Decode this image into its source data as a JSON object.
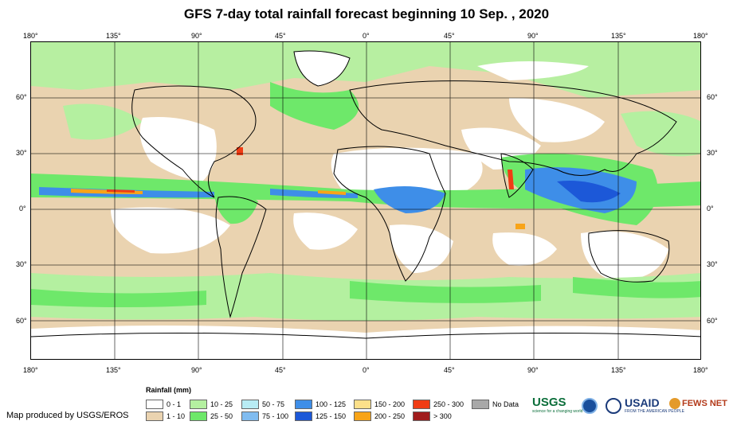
{
  "title": "GFS 7-day total rainfall forecast beginning 10 Sep. , 2020",
  "lon_labels": [
    "180°",
    "135°",
    "90°",
    "45°",
    "0°",
    "45°",
    "90°",
    "135°",
    "180°"
  ],
  "lat_labels": [
    "60°",
    "30°",
    "0°",
    "30°",
    "60°"
  ],
  "legend": {
    "title": "Rainfall (mm)",
    "items": [
      {
        "label": "0 - 1",
        "color": "#ffffff"
      },
      {
        "label": "1 - 10",
        "color": "#ead3b0"
      },
      {
        "label": "10 - 25",
        "color": "#b4f0a0"
      },
      {
        "label": "25 - 50",
        "color": "#6ee86a"
      },
      {
        "label": "50 - 75",
        "color": "#b8ecf4"
      },
      {
        "label": "75 - 100",
        "color": "#80bcf0"
      },
      {
        "label": "100 - 125",
        "color": "#3e8ee8"
      },
      {
        "label": "125 - 150",
        "color": "#1c58d8"
      },
      {
        "label": "150 - 200",
        "color": "#fce08a"
      },
      {
        "label": "200 - 250",
        "color": "#f8a418"
      },
      {
        "label": "250 - 300",
        "color": "#f03c14"
      },
      {
        "label": "> 300",
        "color": "#a01c1c"
      },
      {
        "label": "No Data",
        "color": "#a8a8a8"
      }
    ]
  },
  "credit": "Map produced by USGS/EROS",
  "logos": {
    "usgs": "USGS",
    "usgs_tagline": "science for a changing world",
    "usaid": "USAID",
    "usaid_tagline": "FROM THE AMERICAN PEOPLE",
    "fewsnet": "FEWS NET"
  }
}
